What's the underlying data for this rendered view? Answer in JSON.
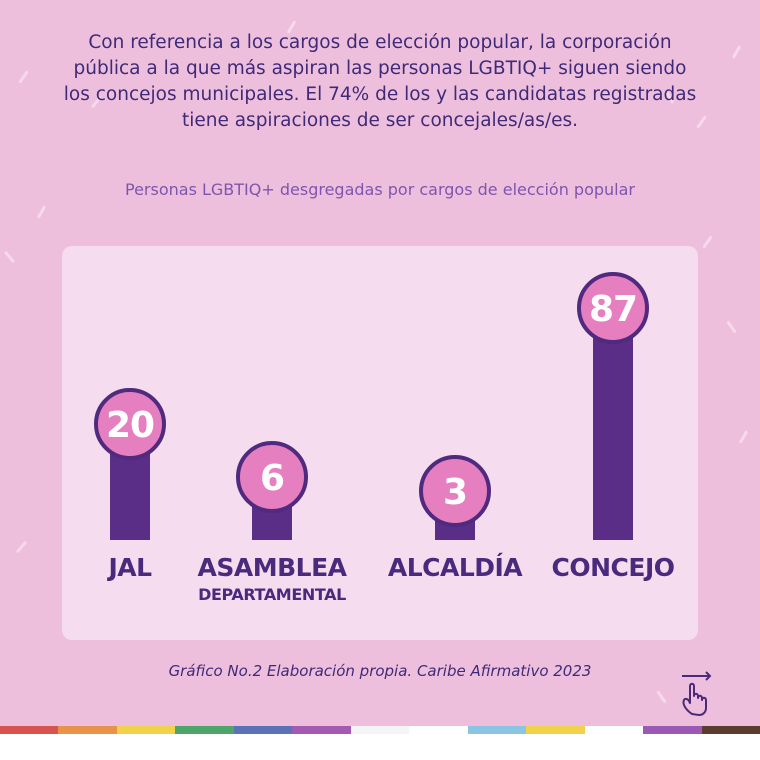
{
  "intro_text": "Con referencia a los cargos de elección popular, la corporación pública a la que más aspiran las personas LGBTIQ+ siguen siendo los concejos municipales. El 74% de los y las candidatas registradas tiene aspiraciones de ser concejales/as/es.",
  "source_note": "Gráfico No.2 Elaboración propia. Caribe Afirmativo 2023",
  "colors": {
    "background": "#eebfdc",
    "panel": "#f5dcee",
    "bar": "#5a2d86",
    "bubble_fill": "#e57fbf",
    "bubble_stroke": "#4f2a7f",
    "text_dark": "#3f2a78",
    "title": "#7d55b0"
  },
  "swipe_icon": "hand-swipe-icon",
  "chart_data": {
    "type": "bar",
    "title": "Personas LGBTIQ+ desgregadas por cargos de elección popular",
    "categories": [
      "JAL",
      "ASAMBLEA",
      "ALCALDÍA",
      "CONCEJO"
    ],
    "category_sublabels": [
      "",
      "DEPARTAMENTAL",
      "",
      ""
    ],
    "values": [
      20,
      6,
      3,
      87
    ],
    "data_labels": [
      "20",
      "6",
      "3",
      "87"
    ],
    "xlabel": "",
    "ylabel": "",
    "grid": false,
    "legend": "none"
  },
  "footer_stripe_colors": [
    "#d9534f",
    "#e8924a",
    "#f2d24b",
    "#4fa46a",
    "#5a73b8",
    "#a35ab0",
    "#f5f5f5",
    "#ffffff",
    "#8cc4e3",
    "#f2d24b",
    "#ffffff",
    "#9b59b6",
    "#5a3d2e"
  ]
}
